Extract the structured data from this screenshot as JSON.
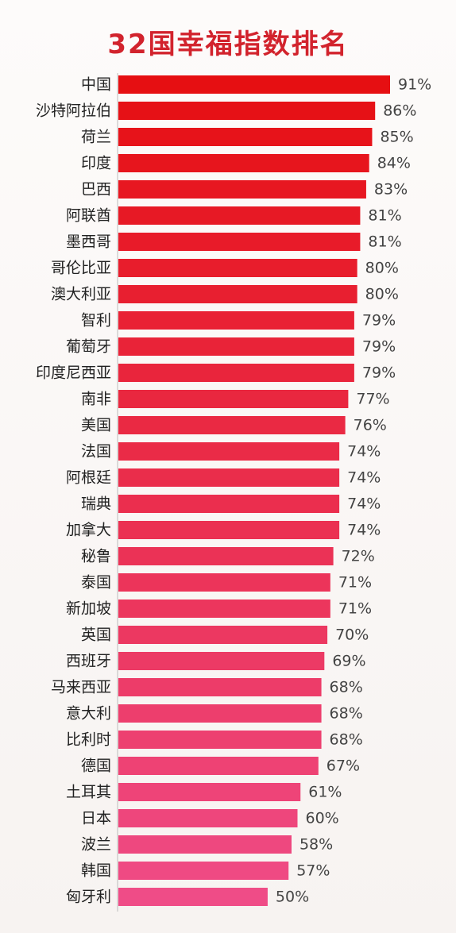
{
  "chart_data": {
    "type": "bar",
    "orientation": "horizontal",
    "title": "32国幸福指数排名",
    "xlabel": "",
    "ylabel": "",
    "xlim": [
      0,
      100
    ],
    "unit": "%",
    "grid": false,
    "categories": [
      "中国",
      "沙特阿拉伯",
      "荷兰",
      "印度",
      "巴西",
      "阿联酋",
      "墨西哥",
      "哥伦比亚",
      "澳大利亚",
      "智利",
      "葡萄牙",
      "印度尼西亚",
      "南非",
      "美国",
      "法国",
      "阿根廷",
      "瑞典",
      "加拿大",
      "秘鲁",
      "泰国",
      "新加坡",
      "英国",
      "西班牙",
      "马来西亚",
      "意大利",
      "比利时",
      "德国",
      "土耳其",
      "日本",
      "波兰",
      "韩国",
      "匈牙利"
    ],
    "values": [
      91,
      86,
      85,
      84,
      83,
      81,
      81,
      80,
      80,
      79,
      79,
      79,
      77,
      76,
      74,
      74,
      74,
      74,
      72,
      71,
      71,
      70,
      69,
      68,
      68,
      68,
      67,
      61,
      60,
      58,
      57,
      50
    ],
    "value_labels": [
      "91%",
      "86%",
      "85%",
      "84%",
      "83%",
      "81%",
      "81%",
      "80%",
      "80%",
      "79%",
      "79%",
      "79%",
      "77%",
      "76%",
      "74%",
      "74%",
      "74%",
      "74%",
      "72%",
      "71%",
      "71%",
      "70%",
      "69%",
      "68%",
      "68%",
      "68%",
      "67%",
      "61%",
      "60%",
      "58%",
      "57%",
      "50%"
    ],
    "colors": {
      "bar_top": "#e60f12",
      "bar_bottom": "#ef4c87",
      "title": "#d2232d"
    }
  }
}
